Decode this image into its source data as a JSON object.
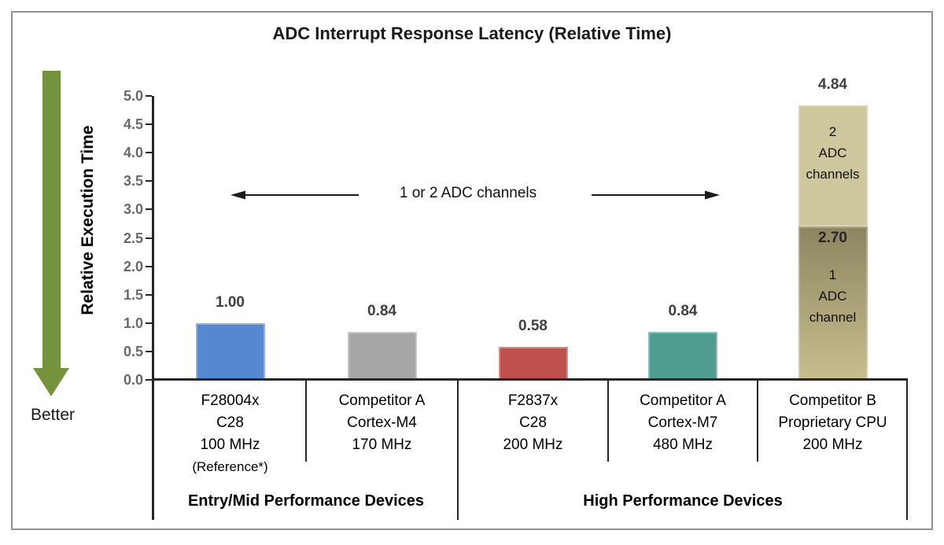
{
  "chart_data": {
    "type": "bar",
    "title": "ADC Interrupt Response Latency (Relative Time)",
    "ylabel": "Relative Execution Time",
    "ylim": [
      0,
      5
    ],
    "ytick_step": 0.5,
    "yticks": [
      "5.0",
      "4.5",
      "4.0",
      "3.5",
      "3.0",
      "2.5",
      "2.0",
      "1.5",
      "1.0",
      "0.5",
      "0.0"
    ],
    "grid": false,
    "legend": false,
    "better_label": "Better",
    "better_direction": "down",
    "better_arrow_color": "#75933d",
    "annotation": "1 or 2 ADC channels",
    "axis_color": "#262626",
    "bars": [
      {
        "name": "bar-f28004x",
        "category_lines": [
          "F28004x",
          "C28",
          "100 MHz"
        ],
        "category_note": "(Reference*)",
        "value": 1.0,
        "value_label": "1.00",
        "color": "#5588d2"
      },
      {
        "name": "bar-competitor-a-cortex-m4",
        "category_lines": [
          "Competitor A",
          "Cortex-M4",
          "170 MHz"
        ],
        "value": 0.84,
        "value_label": "0.84",
        "color": "#a6a6a6"
      },
      {
        "name": "bar-f2837x",
        "category_lines": [
          "F2837x",
          "C28",
          "200 MHz"
        ],
        "value": 0.58,
        "value_label": "0.58",
        "color": "#c0504d"
      },
      {
        "name": "bar-competitor-a-cortex-m7",
        "category_lines": [
          "Competitor A",
          "Cortex-M7",
          "480 MHz"
        ],
        "value": 0.84,
        "value_label": "0.84",
        "color": "#4f9c91"
      },
      {
        "name": "bar-competitor-b",
        "category_lines": [
          "Competitor B",
          "Proprietary CPU",
          "200 MHz"
        ],
        "stacked": true,
        "total_value": 4.84,
        "total_label": "4.84",
        "segments": [
          {
            "value": 2.7,
            "value_label": "2.70",
            "lines": [
              "1",
              "ADC",
              "channel"
            ],
            "gradient_top": "#8d8560",
            "gradient_bottom": "#c7be8e"
          },
          {
            "value": 2.14,
            "lines": [
              "2",
              "ADC",
              "channels"
            ],
            "color": "#cec69d"
          }
        ]
      }
    ],
    "groups": [
      {
        "label": "Entry/Mid Performance Devices",
        "start": 0,
        "end": 2
      },
      {
        "label": "High Performance Devices",
        "start": 2,
        "end": 5
      }
    ]
  }
}
